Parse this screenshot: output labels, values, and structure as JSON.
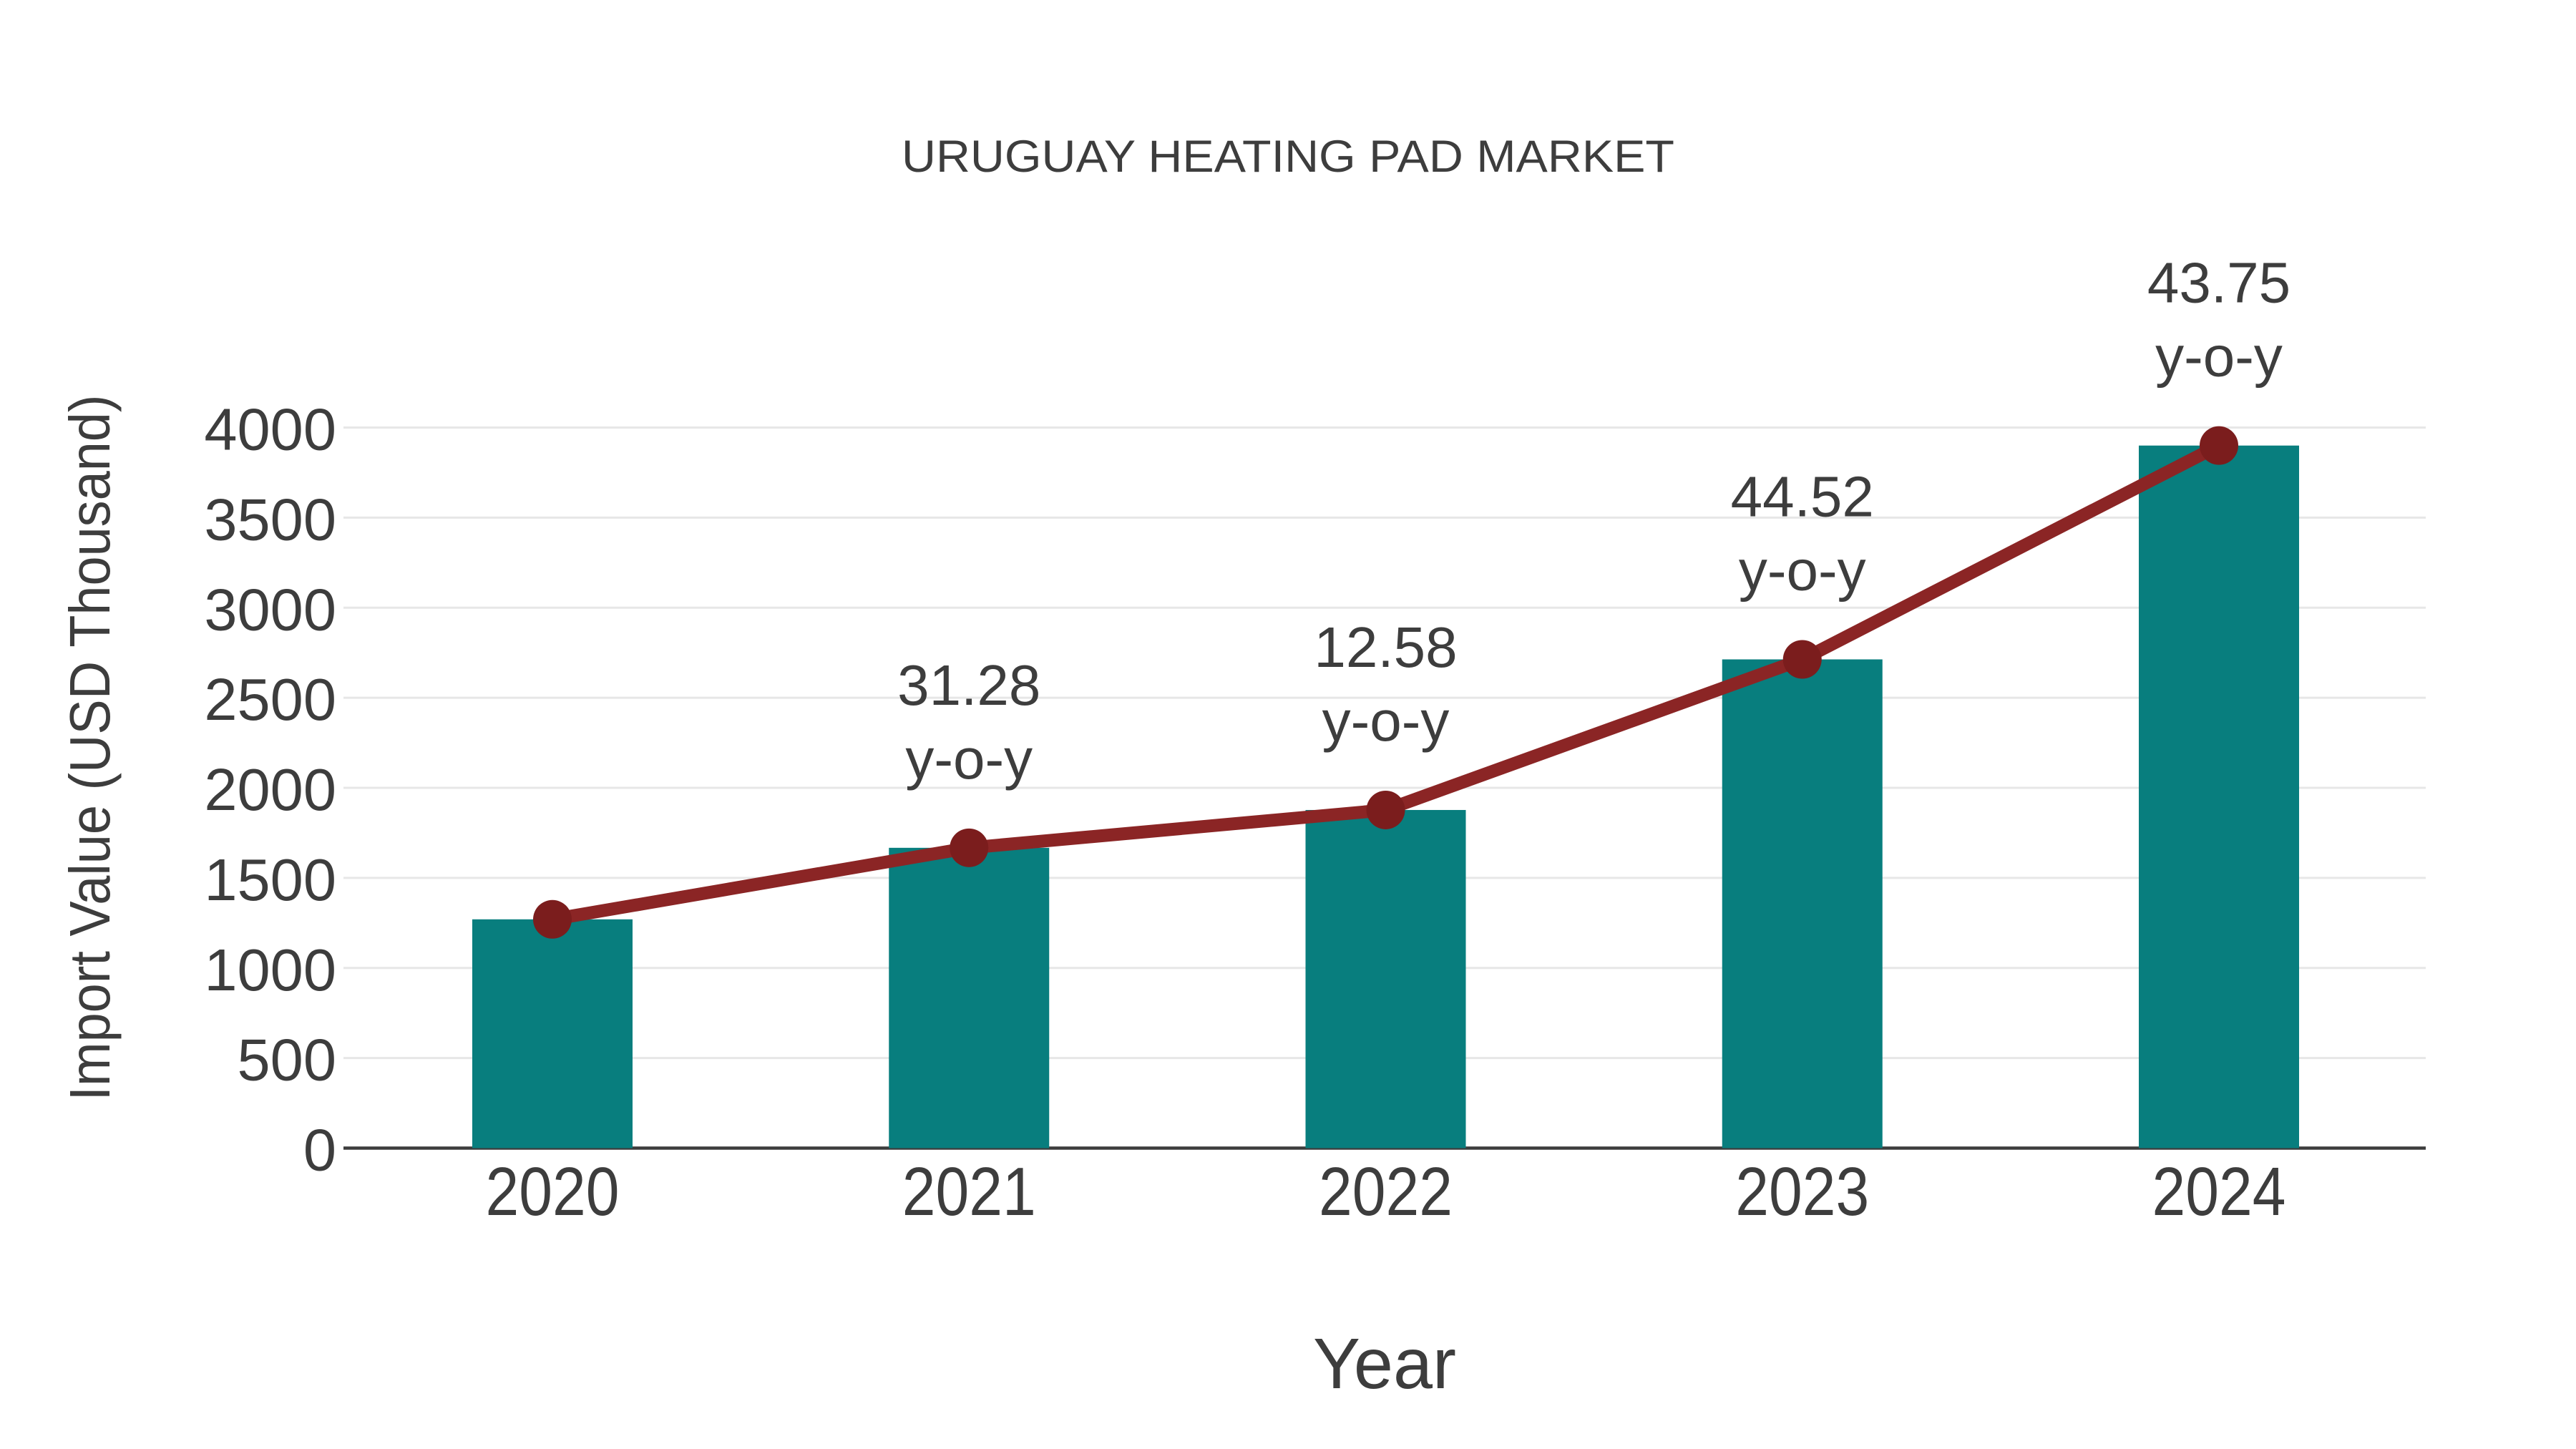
{
  "page": {
    "background": "#ffffff"
  },
  "chart_data": {
    "type": "combo-bar-line",
    "title": "URUGUAY HEATING PAD MARKET",
    "xlabel": "Year",
    "ylabel": "Import Value (USD Thousand)",
    "categories": [
      "2020",
      "2021",
      "2022",
      "2023",
      "2024"
    ],
    "series": [
      {
        "name": "Import Value bars",
        "type": "bar",
        "color": "#087e7e",
        "values": [
          1270,
          1667,
          1877,
          2713,
          3900
        ]
      },
      {
        "name": "Import Value trend line",
        "type": "line",
        "color": "#8b2525",
        "marker_color": "#7b1d1d",
        "values": [
          1270,
          1667,
          1877,
          2713,
          3900
        ]
      }
    ],
    "annotations": [
      {
        "category": "2021",
        "value": "31.28",
        "label": "y-o-y"
      },
      {
        "category": "2022",
        "value": "12.58",
        "label": "y-o-y"
      },
      {
        "category": "2023",
        "value": "44.52",
        "label": "y-o-y"
      },
      {
        "category": "2024",
        "value": "43.75",
        "label": "y-o-y"
      }
    ],
    "ylim": [
      0,
      4000
    ],
    "y_ticks": [
      0,
      500,
      1000,
      1500,
      2000,
      2500,
      3000,
      3500,
      4000
    ],
    "grid": true,
    "legend": "none",
    "colors": {
      "text": "#3d3d3d",
      "grid": "#e7e7e7",
      "axis": "#3c3c3c"
    }
  }
}
